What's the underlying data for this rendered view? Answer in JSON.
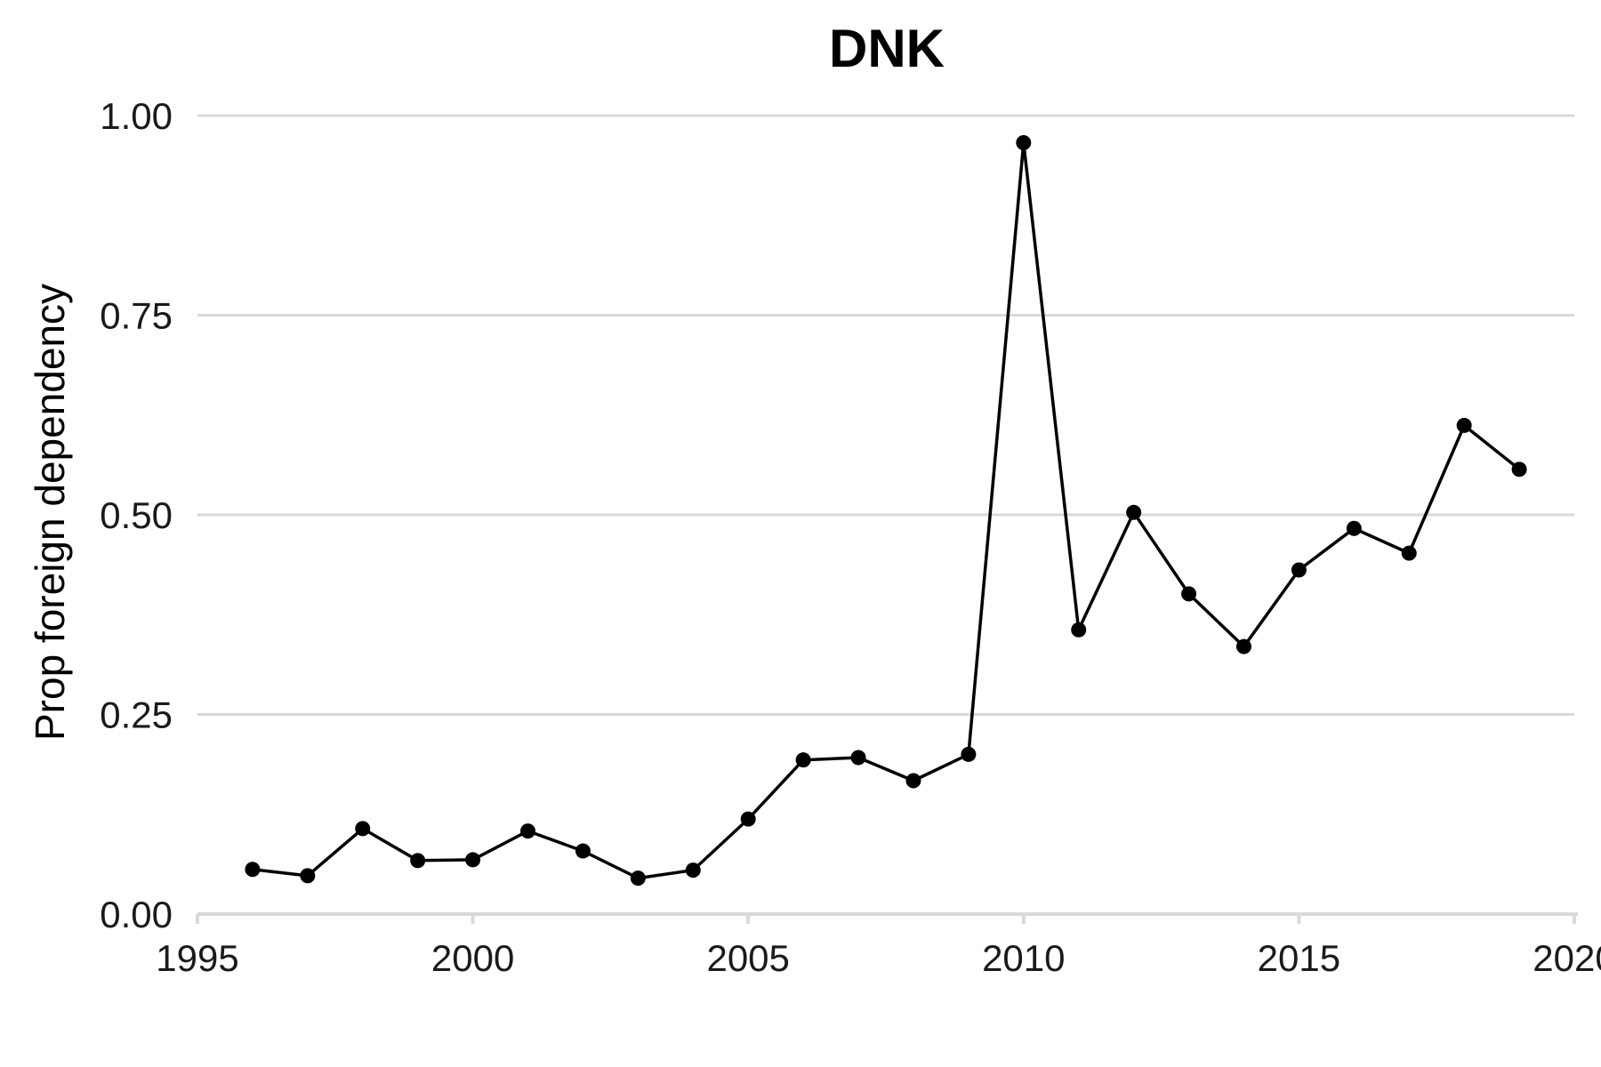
{
  "chart_data": {
    "type": "line",
    "title": "DNK",
    "xlabel": "",
    "ylabel": "Prop foreign dependency",
    "xlim": [
      1995,
      2020
    ],
    "ylim": [
      0,
      1
    ],
    "x_ticks": [
      1995,
      2000,
      2005,
      2010,
      2015,
      2020
    ],
    "x_tick_labels": [
      "1995",
      "2000",
      "2005",
      "2010",
      "2015",
      "2020"
    ],
    "y_ticks": [
      0,
      0.25,
      0.5,
      0.75,
      1
    ],
    "y_tick_labels": [
      "0.00",
      "0.25",
      "0.50",
      "0.75",
      "1.00"
    ],
    "grid": "horizontal",
    "legend": "none",
    "series": [
      {
        "x": [
          1996,
          1997,
          1998,
          1999,
          2000,
          2001,
          2002,
          2003,
          2004,
          2005,
          2006,
          2007,
          2008,
          2009,
          2010,
          2011,
          2012,
          2013,
          2014,
          2015,
          2016,
          2017,
          2018,
          2019
        ],
        "values": [
          0.056,
          0.048,
          0.107,
          0.067,
          0.068,
          0.104,
          0.079,
          0.045,
          0.055,
          0.119,
          0.193,
          0.196,
          0.167,
          0.2,
          0.966,
          0.356,
          0.503,
          0.401,
          0.335,
          0.431,
          0.483,
          0.452,
          0.612,
          0.557
        ]
      }
    ]
  },
  "colors": {
    "line": "#000000",
    "point": "#000000",
    "grid": "#d9d9d9",
    "axis": "#d9d9d9",
    "background": "#ffffff"
  }
}
